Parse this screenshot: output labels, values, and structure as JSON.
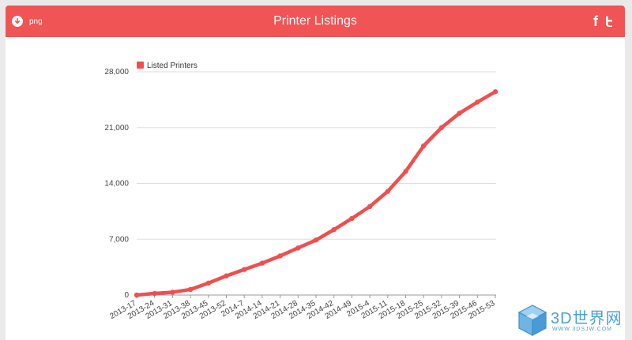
{
  "header": {
    "download_label": "png",
    "title": "Printer Listings"
  },
  "colors": {
    "header_bg": "#f05454",
    "series": "#ef4f4f",
    "grid": "#dddddd"
  },
  "icons": [
    "download-icon",
    "facebook-icon",
    "twitter-icon",
    "cube-logo-icon"
  ],
  "watermark": {
    "text": "3D世界网",
    "url": "WWW.3DSJW.COM"
  },
  "chart_data": {
    "type": "line",
    "title": "",
    "legend_position": "top-left",
    "grid": "horizontal",
    "ylim": [
      0,
      28000
    ],
    "yticks": [
      0,
      7000,
      14000,
      21000,
      28000
    ],
    "ytick_labels": [
      "0",
      "7,000",
      "14,000",
      "21,000",
      "28,000"
    ],
    "xtick_labels": [
      "2013-17",
      "2013-24",
      "2013-31",
      "2013-38",
      "2013-45",
      "2013-52",
      "2014-7",
      "2014-14",
      "2014-21",
      "2014-28",
      "2014-35",
      "2014-42",
      "2014-49",
      "2015-4",
      "2015-11",
      "2015-18",
      "2015-25",
      "2015-32",
      "2015-39",
      "2015-46",
      "2015-53"
    ],
    "series": [
      {
        "name": "Listed Printers",
        "values": [
          0,
          200,
          350,
          700,
          1500,
          2400,
          3200,
          4000,
          4900,
          5900,
          6900,
          8200,
          9600,
          11100,
          13000,
          15500,
          18700,
          21000,
          22800,
          24200,
          25500
        ]
      }
    ]
  }
}
